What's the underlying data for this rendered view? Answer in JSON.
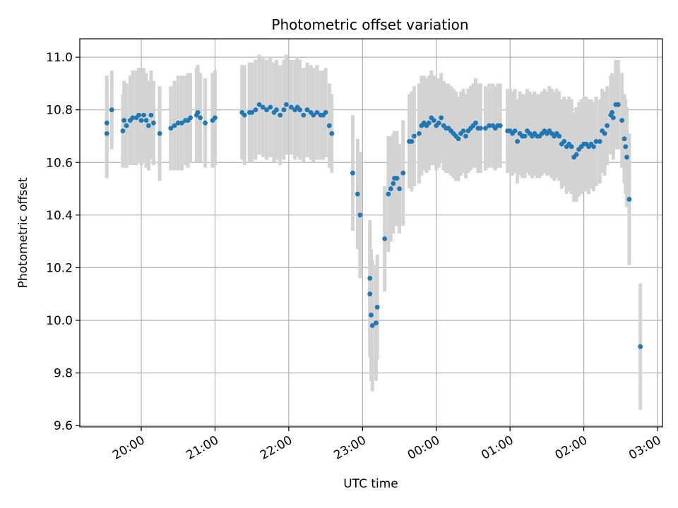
{
  "chart_data": {
    "type": "scatter",
    "title": "Photometric offset variation",
    "xlabel": "UTC time",
    "ylabel": "Photometric offset",
    "x_ticks": [
      "20:00",
      "21:00",
      "22:00",
      "23:00",
      "00:00",
      "01:00",
      "02:00",
      "03:00"
    ],
    "y_ticks": [
      "9.6",
      "9.8",
      "10.0",
      "10.2",
      "10.4",
      "10.6",
      "10.8",
      "11.0"
    ],
    "xlim": [
      "19:10",
      "03:04"
    ],
    "ylim": [
      9.595,
      11.07
    ],
    "grid": true,
    "colors": {
      "points": "#1f77b4",
      "errorbars": "#d3d3d3",
      "grid": "#b0b0b0"
    },
    "series": [
      {
        "points": [
          [
            "19:32",
            10.71,
            0.17
          ],
          [
            "19:32",
            10.75,
            0.18
          ],
          [
            "19:36",
            10.8,
            0.15
          ],
          [
            "19:45",
            10.72,
            0.14
          ],
          [
            "19:46",
            10.76,
            0.15
          ],
          [
            "19:48",
            10.74,
            0.16
          ],
          [
            "19:51",
            10.76,
            0.17
          ],
          [
            "19:53",
            10.77,
            0.18
          ],
          [
            "19:56",
            10.77,
            0.18
          ],
          [
            "19:58",
            10.78,
            0.18
          ],
          [
            "20:00",
            10.76,
            0.17
          ],
          [
            "20:02",
            10.78,
            0.18
          ],
          [
            "20:04",
            10.76,
            0.18
          ],
          [
            "20:06",
            10.74,
            0.17
          ],
          [
            "20:08",
            10.78,
            0.17
          ],
          [
            "20:10",
            10.75,
            0.16
          ],
          [
            "20:15",
            10.71,
            0.18
          ],
          [
            "20:24",
            10.73,
            0.16
          ],
          [
            "20:27",
            10.74,
            0.17
          ],
          [
            "20:30",
            10.75,
            0.18
          ],
          [
            "20:33",
            10.75,
            0.18
          ],
          [
            "20:36",
            10.76,
            0.17
          ],
          [
            "20:38",
            10.76,
            0.18
          ],
          [
            "20:40",
            10.77,
            0.17
          ],
          [
            "20:45",
            10.78,
            0.18
          ],
          [
            "20:46",
            10.79,
            0.18
          ],
          [
            "20:48",
            10.77,
            0.17
          ],
          [
            "20:52",
            10.75,
            0.17
          ],
          [
            "20:58",
            10.76,
            0.18
          ],
          [
            "21:00",
            10.77,
            0.18
          ],
          [
            "21:22",
            10.79,
            0.18
          ],
          [
            "21:24",
            10.78,
            0.19
          ],
          [
            "21:28",
            10.79,
            0.19
          ],
          [
            "21:30",
            10.79,
            0.19
          ],
          [
            "21:33",
            10.8,
            0.19
          ],
          [
            "21:36",
            10.82,
            0.19
          ],
          [
            "21:39",
            10.81,
            0.19
          ],
          [
            "21:42",
            10.8,
            0.19
          ],
          [
            "21:45",
            10.81,
            0.19
          ],
          [
            "21:48",
            10.79,
            0.19
          ],
          [
            "21:50",
            10.8,
            0.19
          ],
          [
            "21:53",
            10.78,
            0.19
          ],
          [
            "21:56",
            10.8,
            0.19
          ],
          [
            "21:58",
            10.82,
            0.19
          ],
          [
            "22:02",
            10.81,
            0.18
          ],
          [
            "22:05",
            10.8,
            0.19
          ],
          [
            "22:07",
            10.81,
            0.19
          ],
          [
            "22:09",
            10.8,
            0.19
          ],
          [
            "22:12",
            10.78,
            0.18
          ],
          [
            "22:15",
            10.8,
            0.18
          ],
          [
            "22:18",
            10.79,
            0.18
          ],
          [
            "22:20",
            10.78,
            0.18
          ],
          [
            "22:23",
            10.79,
            0.18
          ],
          [
            "22:26",
            10.78,
            0.17
          ],
          [
            "22:28",
            10.78,
            0.17
          ],
          [
            "22:30",
            10.79,
            0.17
          ],
          [
            "22:33",
            10.74,
            0.16
          ],
          [
            "22:35",
            10.71,
            0.15
          ],
          [
            "22:52",
            10.56,
            0.22
          ],
          [
            "22:56",
            10.48,
            0.21
          ],
          [
            "22:58",
            10.4,
            0.24
          ],
          [
            "23:06",
            10.16,
            0.22
          ],
          [
            "23:06",
            10.1,
            0.24
          ],
          [
            "23:07",
            10.02,
            0.25
          ],
          [
            "23:08",
            9.98,
            0.25
          ],
          [
            "23:11",
            9.99,
            0.22
          ],
          [
            "23:12",
            10.05,
            0.2
          ],
          [
            "23:18",
            10.31,
            0.2
          ],
          [
            "23:21",
            10.48,
            0.22
          ],
          [
            "23:23",
            10.5,
            0.2
          ],
          [
            "23:25",
            10.52,
            0.19
          ],
          [
            "23:26",
            10.54,
            0.18
          ],
          [
            "23:28",
            10.54,
            0.18
          ],
          [
            "23:30",
            10.5,
            0.17
          ],
          [
            "23:33",
            10.56,
            0.2
          ],
          [
            "23:38",
            10.68,
            0.18
          ],
          [
            "23:40",
            10.68,
            0.19
          ],
          [
            "23:42",
            10.7,
            0.19
          ],
          [
            "23:46",
            10.71,
            0.19
          ],
          [
            "23:48",
            10.74,
            0.19
          ],
          [
            "23:50",
            10.75,
            0.18
          ],
          [
            "23:52",
            10.74,
            0.18
          ],
          [
            "23:54",
            10.75,
            0.18
          ],
          [
            "23:56",
            10.77,
            0.18
          ],
          [
            "23:58",
            10.76,
            0.17
          ],
          [
            "00:00",
            10.74,
            0.17
          ],
          [
            "00:02",
            10.75,
            0.17
          ],
          [
            "00:04",
            10.77,
            0.17
          ],
          [
            "00:06",
            10.74,
            0.17
          ],
          [
            "00:08",
            10.73,
            0.17
          ],
          [
            "00:10",
            10.73,
            0.17
          ],
          [
            "00:12",
            10.72,
            0.17
          ],
          [
            "00:14",
            10.71,
            0.17
          ],
          [
            "00:16",
            10.7,
            0.17
          ],
          [
            "00:18",
            10.69,
            0.16
          ],
          [
            "00:20",
            10.71,
            0.16
          ],
          [
            "00:22",
            10.72,
            0.16
          ],
          [
            "00:24",
            10.7,
            0.16
          ],
          [
            "00:26",
            10.72,
            0.16
          ],
          [
            "00:28",
            10.73,
            0.16
          ],
          [
            "00:30",
            10.74,
            0.16
          ],
          [
            "00:32",
            10.75,
            0.17
          ],
          [
            "00:34",
            10.73,
            0.17
          ],
          [
            "00:36",
            10.73,
            0.17
          ],
          [
            "00:40",
            10.73,
            0.16
          ],
          [
            "00:43",
            10.74,
            0.16
          ],
          [
            "00:46",
            10.74,
            0.16
          ],
          [
            "00:48",
            10.73,
            0.16
          ],
          [
            "00:50",
            10.74,
            0.16
          ],
          [
            "00:52",
            10.74,
            0.16
          ],
          [
            "00:58",
            10.72,
            0.16
          ],
          [
            "01:00",
            10.72,
            0.16
          ],
          [
            "01:02",
            10.71,
            0.16
          ],
          [
            "01:04",
            10.72,
            0.16
          ],
          [
            "01:06",
            10.68,
            0.16
          ],
          [
            "01:08",
            10.71,
            0.16
          ],
          [
            "01:10",
            10.7,
            0.16
          ],
          [
            "01:12",
            10.7,
            0.16
          ],
          [
            "01:14",
            10.72,
            0.16
          ],
          [
            "01:16",
            10.71,
            0.16
          ],
          [
            "01:18",
            10.7,
            0.16
          ],
          [
            "01:20",
            10.71,
            0.16
          ],
          [
            "01:22",
            10.7,
            0.16
          ],
          [
            "01:24",
            10.7,
            0.16
          ],
          [
            "01:26",
            10.71,
            0.16
          ],
          [
            "01:28",
            10.72,
            0.16
          ],
          [
            "01:30",
            10.71,
            0.16
          ],
          [
            "01:32",
            10.72,
            0.17
          ],
          [
            "01:34",
            10.71,
            0.17
          ],
          [
            "01:36",
            10.7,
            0.17
          ],
          [
            "01:38",
            10.71,
            0.17
          ],
          [
            "01:40",
            10.7,
            0.17
          ],
          [
            "01:42",
            10.67,
            0.17
          ],
          [
            "01:44",
            10.68,
            0.17
          ],
          [
            "01:46",
            10.66,
            0.18
          ],
          [
            "01:48",
            10.67,
            0.18
          ],
          [
            "01:50",
            10.66,
            0.18
          ],
          [
            "01:52",
            10.62,
            0.17
          ],
          [
            "01:54",
            10.63,
            0.18
          ],
          [
            "01:56",
            10.65,
            0.18
          ],
          [
            "01:58",
            10.66,
            0.18
          ],
          [
            "02:00",
            10.67,
            0.18
          ],
          [
            "02:02",
            10.67,
            0.18
          ],
          [
            "02:04",
            10.66,
            0.18
          ],
          [
            "02:06",
            10.67,
            0.17
          ],
          [
            "02:08",
            10.66,
            0.17
          ],
          [
            "02:10",
            10.68,
            0.17
          ],
          [
            "02:13",
            10.68,
            0.16
          ],
          [
            "02:15",
            10.72,
            0.16
          ],
          [
            "02:17",
            10.71,
            0.16
          ],
          [
            "02:19",
            10.74,
            0.15
          ],
          [
            "02:22",
            10.78,
            0.15
          ],
          [
            "02:23",
            10.79,
            0.15
          ],
          [
            "02:24",
            10.77,
            0.16
          ],
          [
            "02:26",
            10.82,
            0.17
          ],
          [
            "02:28",
            10.82,
            0.17
          ],
          [
            "02:31",
            10.76,
            0.18
          ],
          [
            "02:33",
            10.69,
            0.17
          ],
          [
            "02:34",
            10.66,
            0.18
          ],
          [
            "02:35",
            10.62,
            0.19
          ],
          [
            "02:37",
            10.46,
            0.25
          ],
          [
            "02:46",
            9.9,
            0.24
          ]
        ]
      }
    ]
  }
}
